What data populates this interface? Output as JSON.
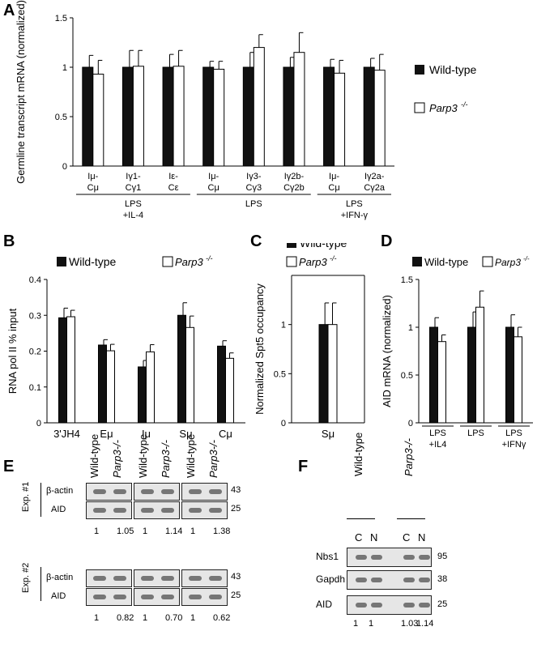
{
  "panels": {
    "a": "A",
    "b": "B",
    "c": "C",
    "d": "D",
    "e": "E",
    "f": "F"
  },
  "legend": {
    "wt": "Wild-type",
    "parp3": "Parp3",
    "parp3_sup": "-/-"
  },
  "chart_data": [
    {
      "id": "A",
      "type": "bar",
      "ylabel": "Germline transcript mRNA (normalized)",
      "ylim": [
        0,
        1.5
      ],
      "yticks": [
        "0",
        "0.5",
        "1",
        "1.5"
      ],
      "categories": [
        "Iμ-Cμ",
        "Iγ1-Cγ1",
        "Iε-Cε",
        "Iμ-Cμ",
        "Iγ3-Cγ3",
        "Iγ2b-Cγ2b",
        "Iμ-Cμ",
        "Iγ2a-Cγ2a"
      ],
      "cat_lines": [
        [
          "Iμ-",
          "Cμ"
        ],
        [
          "Iγ1-",
          "Cγ1"
        ],
        [
          "Iε-",
          "Cε"
        ],
        [
          "Iμ-",
          "Cμ"
        ],
        [
          "Iγ3-",
          "Cγ3"
        ],
        [
          "Iγ2b-",
          "Cγ2b"
        ],
        [
          "Iμ-",
          "Cμ"
        ],
        [
          "Iγ2a-",
          "Cγ2a"
        ]
      ],
      "groups": [
        [
          "LPS",
          "+IL-4"
        ],
        [
          "LPS"
        ],
        [
          "LPS",
          "+IFN-γ"
        ]
      ],
      "series": [
        {
          "name": "Wild-type",
          "values": [
            1.0,
            1.0,
            1.0,
            1.0,
            1.0,
            1.0,
            1.0,
            1.0
          ],
          "errors": [
            0.12,
            0.17,
            0.13,
            0.06,
            0.15,
            0.1,
            0.08,
            0.09
          ]
        },
        {
          "name": "Parp3-/-",
          "values": [
            0.93,
            1.01,
            1.01,
            0.98,
            1.2,
            1.15,
            0.94,
            0.97
          ],
          "errors": [
            0.14,
            0.16,
            0.16,
            0.08,
            0.13,
            0.2,
            0.13,
            0.16
          ]
        }
      ]
    },
    {
      "id": "B",
      "type": "bar",
      "ylabel": "RNA pol II % input",
      "ylim": [
        0,
        0.4
      ],
      "yticks": [
        "0",
        "0.1",
        "0.2",
        "0.3",
        "0.4"
      ],
      "categories": [
        "3'JH4",
        "Eμ",
        "Iμ",
        "Sμ",
        "Cμ"
      ],
      "series": [
        {
          "name": "Wild-type",
          "values": [
            0.293,
            0.217,
            0.156,
            0.3,
            0.214
          ],
          "errors": [
            0.027,
            0.015,
            0.018,
            0.035,
            0.015
          ]
        },
        {
          "name": "Parp3-/-",
          "values": [
            0.296,
            0.201,
            0.198,
            0.266,
            0.18
          ],
          "errors": [
            0.018,
            0.018,
            0.02,
            0.032,
            0.015
          ]
        }
      ]
    },
    {
      "id": "C",
      "type": "bar",
      "ylabel": "Normalized Spt5 occupancy",
      "ylim": [
        0,
        1.5
      ],
      "yticks": [
        "0",
        "0.5",
        "1"
      ],
      "categories": [
        "Sμ"
      ],
      "series": [
        {
          "name": "Wild-type",
          "values": [
            1.0
          ],
          "errors": [
            0.22
          ]
        },
        {
          "name": "Parp3-/-",
          "values": [
            1.0
          ],
          "errors": [
            0.22
          ]
        }
      ]
    },
    {
      "id": "D",
      "type": "bar",
      "ylabel": "AID mRNA (normalized)",
      "ylim": [
        0,
        1.5
      ],
      "yticks": [
        "0",
        "0.5",
        "1",
        "1.5"
      ],
      "categories": [
        "LPS +IL4",
        "LPS",
        "LPS +IFNγ"
      ],
      "cat_lines": [
        [
          "LPS",
          "+IL4"
        ],
        [
          "LPS"
        ],
        [
          "LPS",
          "+IFNγ"
        ]
      ],
      "series": [
        {
          "name": "Wild-type",
          "values": [
            1.0,
            1.0,
            1.0
          ],
          "errors": [
            0.1,
            0.16,
            0.13
          ]
        },
        {
          "name": "Parp3-/-",
          "values": [
            0.85,
            1.21,
            0.9
          ],
          "errors": [
            0.07,
            0.17,
            0.1
          ]
        }
      ]
    }
  ],
  "blot_e": {
    "lane_labels": [
      "Wild-type",
      "Parp3",
      "Wild-type",
      "Parp3",
      "Wild-type",
      "Parp3"
    ],
    "exp1": "Exp. #1",
    "exp2": "Exp. #2",
    "row1": "β-actin",
    "row2": "AID",
    "mw_actin": "43",
    "mw_aid": "25",
    "quant1": [
      "1",
      "1.05",
      "1",
      "1.14",
      "1",
      "1.38"
    ],
    "quant2": [
      "1",
      "0.82",
      "1",
      "0.70",
      "1",
      "0.62"
    ]
  },
  "blot_f": {
    "genotypes": [
      "Wild-type",
      "Parp3"
    ],
    "lanes": [
      "C",
      "N",
      "C",
      "N"
    ],
    "rows": [
      "Nbs1",
      "Gapdh",
      "AID"
    ],
    "mw": [
      "95",
      "38",
      "25"
    ],
    "quant": [
      "1",
      "1",
      "1.03",
      "1.14"
    ]
  }
}
